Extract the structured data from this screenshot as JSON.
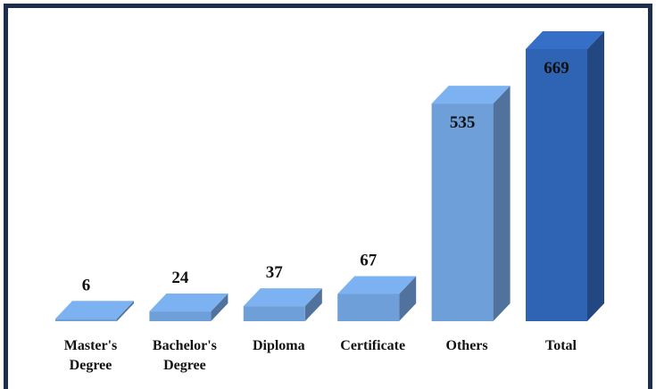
{
  "chart_data": {
    "type": "bar3d",
    "categories": [
      "Master's Degree",
      "Bachelor's Degree",
      "Diploma",
      "Certificate",
      "Others",
      "Total"
    ],
    "values": [
      6,
      24,
      37,
      67,
      535,
      669
    ],
    "colors": [
      "#6f9fd8",
      "#6f9fd8",
      "#6f9fd8",
      "#6f9fd8",
      "#6f9fd8",
      "#2f63b3"
    ]
  }
}
